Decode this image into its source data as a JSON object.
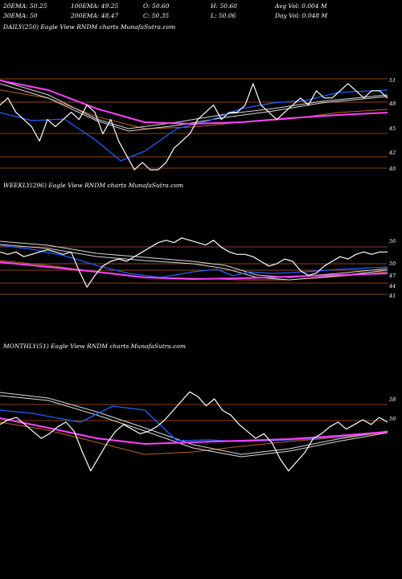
{
  "header": {
    "ema20": "20EMA: 50.25",
    "ema100": "100EMA: 49.25",
    "open": "O: 50.60",
    "high": "H: 50.60",
    "avg_vol": "Avg Vol: 0.004  M",
    "ema30": "30EMA: 50",
    "ema200": "200EMA: 48.47",
    "close": "C: 50.35",
    "low": "L: 50.06",
    "day_vol": "Day Vol: 0.048  M"
  },
  "colors": {
    "background": "#000000",
    "price": "#ffffff",
    "level_line": "#8b4513",
    "ema_blue": "#1f5fff",
    "ema_magenta": "#ff40ff",
    "ema_orange": "#b8651b",
    "ema_white_band": "#d8d8d8"
  },
  "chart_data": [
    {
      "type": "line",
      "title": "DAILY(250) Eagle  View  RNDM charts MunafaSutra.com",
      "levels": [
        "51",
        "48",
        "45",
        "42",
        "40"
      ],
      "series": [
        {
          "values": [
            49,
            50,
            48,
            47,
            46,
            44,
            47,
            46,
            47,
            48,
            47,
            49,
            48,
            45,
            47,
            44,
            42,
            40,
            41,
            40,
            40,
            41,
            43,
            44,
            45,
            47,
            48,
            49,
            47,
            48,
            48,
            49,
            52,
            49,
            48,
            47,
            48,
            49,
            50,
            49,
            51,
            50,
            50,
            51,
            52,
            51,
            50,
            51,
            51,
            50
          ]
        }
      ]
    },
    {
      "type": "line",
      "title": "WEEKLY(296) Eagle  View  RNDM charts MunafaSutra.com",
      "levels": [
        "56",
        "50",
        "47",
        "44",
        "41"
      ],
      "series": [
        {
          "values": [
            50,
            49,
            50,
            48,
            49,
            50,
            51,
            50,
            49,
            50,
            42,
            35,
            40,
            44,
            46,
            47,
            46,
            48,
            50,
            52,
            54,
            55,
            54,
            56,
            55,
            54,
            53,
            55,
            52,
            50,
            49,
            49,
            48,
            46,
            44,
            45,
            47,
            46,
            42,
            40,
            41,
            44,
            46,
            48,
            47,
            49,
            50,
            49,
            50,
            50
          ]
        }
      ]
    },
    {
      "type": "line",
      "title": "MONTHLY(51) Eagle  View  RNDM charts MunafaSutra.com",
      "levels": [
        "58",
        "50"
      ],
      "series": [
        {
          "values": [
            50,
            52,
            53,
            50,
            47,
            44,
            46,
            49,
            51,
            47,
            38,
            30,
            36,
            42,
            47,
            50,
            48,
            46,
            47,
            49,
            52,
            56,
            60,
            64,
            62,
            58,
            61,
            56,
            54,
            50,
            47,
            44,
            46,
            42,
            35,
            30,
            34,
            38,
            44,
            46,
            49,
            51,
            48,
            50,
            52,
            50,
            53,
            51
          ]
        }
      ]
    }
  ]
}
